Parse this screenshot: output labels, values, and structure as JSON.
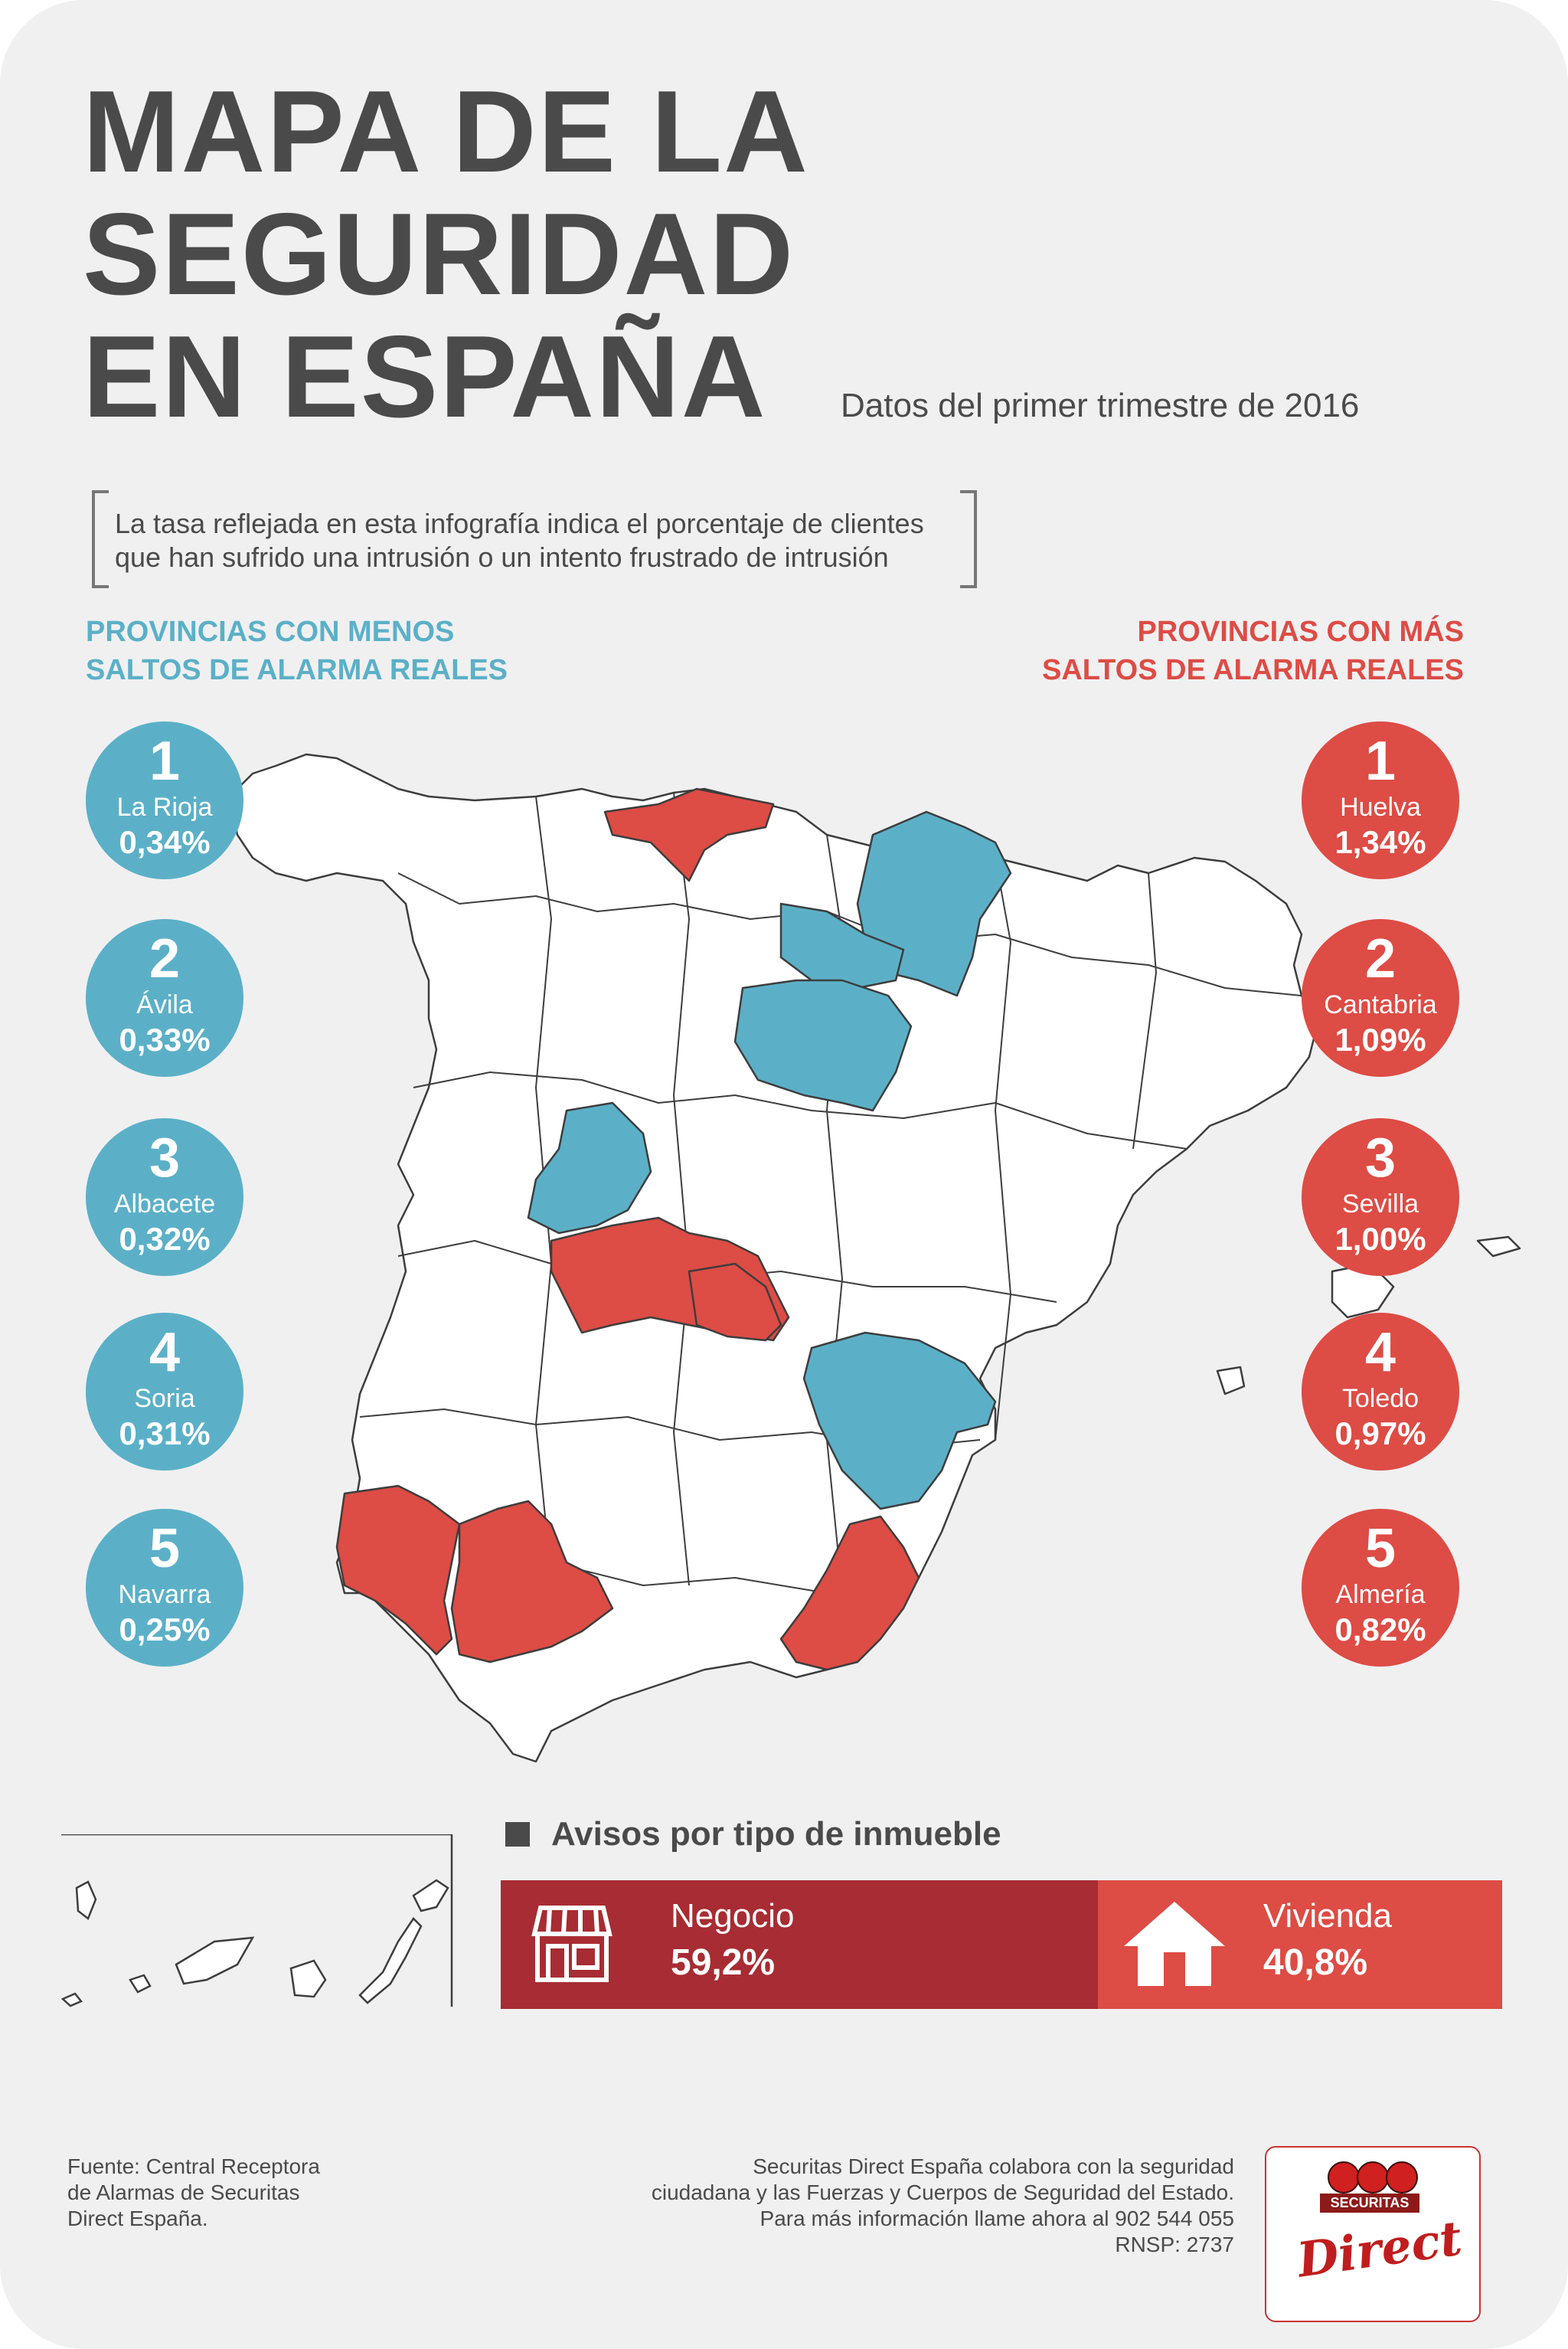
{
  "title": "MAPA DE LA SEGURIDAD EN ESPAÑA",
  "title_lines": [
    "MAPA DE LA",
    "SEGURIDAD",
    "EN ESPAÑA"
  ],
  "subtitle": "Datos del primer trimestre de 2016",
  "note_lines": [
    "La tasa reflejada en esta infografía indica el porcentaje de clientes",
    "que han sufrido una intrusión o un intento frustrado de intrusión"
  ],
  "left_heading": [
    "PROVINCIAS CON MENOS",
    "SALTOS DE ALARMA REALES"
  ],
  "right_heading": [
    "PROVINCIAS CON MÁS",
    "SALTOS DE ALARMA REALES"
  ],
  "colors": {
    "low": "#5bb0c7",
    "high": "#dd4c45",
    "business": "#a72c33",
    "home": "#dd4c45",
    "text": "#4a4a4a"
  },
  "least": [
    {
      "rank": "1",
      "province": "La Rioja",
      "value": "0,34%"
    },
    {
      "rank": "2",
      "province": "Ávila",
      "value": "0,33%"
    },
    {
      "rank": "3",
      "province": "Albacete",
      "value": "0,32%"
    },
    {
      "rank": "4",
      "province": "Soria",
      "value": "0,31%"
    },
    {
      "rank": "5",
      "province": "Navarra",
      "value": "0,25%"
    }
  ],
  "most": [
    {
      "rank": "1",
      "province": "Huelva",
      "value": "1,34%"
    },
    {
      "rank": "2",
      "province": "Cantabria",
      "value": "1,09%"
    },
    {
      "rank": "3",
      "province": "Sevilla",
      "value": "1,00%"
    },
    {
      "rank": "4",
      "province": "Toledo",
      "value": "0,97%"
    },
    {
      "rank": "5",
      "province": "Almería",
      "value": "0,82%"
    }
  ],
  "avisos": {
    "title": "Avisos por tipo de inmueble",
    "business_label": "Negocio",
    "business_value": "59,2%",
    "home_label": "Vivienda",
    "home_value": "40,8%"
  },
  "source_lines": [
    "Fuente: Central Receptora",
    "de Alarmas de Securitas",
    "Direct España."
  ],
  "collab_lines": [
    "Securitas Direct España colabora con la seguridad",
    "ciudadana y las Fuerzas y Cuerpos de Seguridad del Estado.",
    "Para más información llame ahora al 902 544 055",
    "RNSP: 2737"
  ],
  "logo": {
    "top": "SECURITAS",
    "bottom": "Direct"
  },
  "icons": {
    "business": "shop-icon",
    "home": "house-icon"
  }
}
